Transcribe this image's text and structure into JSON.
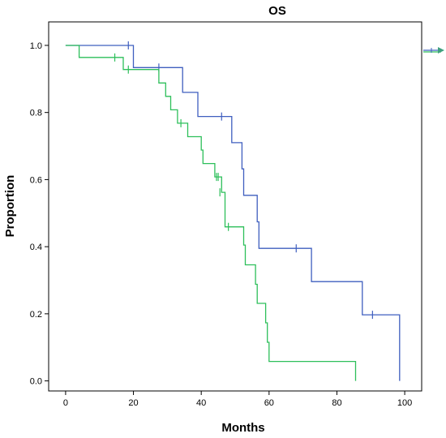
{
  "chart_data": {
    "type": "line",
    "subtype": "kaplan-meier-step",
    "title": "OS",
    "xlabel": "Months",
    "ylabel": "Proportion",
    "xlim": [
      -5,
      105
    ],
    "ylim": [
      -0.03,
      1.07
    ],
    "xticks": [
      "0",
      "20",
      "40",
      "60",
      "80",
      "100"
    ],
    "yticks": [
      "0.0",
      "0.2",
      "0.4",
      "0.6",
      "0.8",
      "1.0"
    ],
    "grid": false,
    "legend": "partially visible at right edge",
    "series": [
      {
        "color": "#3f5fbf",
        "steps": [
          [
            0,
            1.0
          ],
          [
            20,
            1.0
          ],
          [
            20,
            0.934
          ],
          [
            34.5,
            0.934
          ],
          [
            34.5,
            0.86
          ],
          [
            39,
            0.86
          ],
          [
            39,
            0.788
          ],
          [
            49,
            0.788
          ],
          [
            49,
            0.71
          ],
          [
            52,
            0.71
          ],
          [
            52,
            0.632
          ],
          [
            52.5,
            0.632
          ],
          [
            52.5,
            0.553
          ],
          [
            56.5,
            0.553
          ],
          [
            56.5,
            0.474
          ],
          [
            57,
            0.474
          ],
          [
            57,
            0.395
          ],
          [
            72.5,
            0.395
          ],
          [
            72.5,
            0.296
          ],
          [
            87.5,
            0.296
          ],
          [
            87.5,
            0.197
          ],
          [
            98.5,
            0.197
          ],
          [
            98.5,
            0.0
          ]
        ],
        "censored": [
          [
            18.5,
            1.0
          ],
          [
            27.5,
            0.934
          ],
          [
            46,
            0.788
          ],
          [
            68,
            0.395
          ],
          [
            90.5,
            0.197
          ]
        ]
      },
      {
        "color": "#2dbf5a",
        "steps": [
          [
            0,
            1.0
          ],
          [
            4,
            1.0
          ],
          [
            4,
            0.964
          ],
          [
            17,
            0.964
          ],
          [
            17,
            0.928
          ],
          [
            27.5,
            0.928
          ],
          [
            27.5,
            0.888
          ],
          [
            29.5,
            0.888
          ],
          [
            29.5,
            0.848
          ],
          [
            31,
            0.848
          ],
          [
            31,
            0.808
          ],
          [
            33,
            0.808
          ],
          [
            33,
            0.768
          ],
          [
            36,
            0.768
          ],
          [
            36,
            0.728
          ],
          [
            40,
            0.728
          ],
          [
            40,
            0.688
          ],
          [
            40.5,
            0.688
          ],
          [
            40.5,
            0.648
          ],
          [
            44,
            0.648
          ],
          [
            44,
            0.608
          ],
          [
            46,
            0.608
          ],
          [
            46,
            0.562
          ],
          [
            47,
            0.562
          ],
          [
            47,
            0.459
          ],
          [
            52.5,
            0.459
          ],
          [
            52.5,
            0.405
          ],
          [
            53,
            0.405
          ],
          [
            53,
            0.346
          ],
          [
            56,
            0.346
          ],
          [
            56,
            0.288
          ],
          [
            56.5,
            0.288
          ],
          [
            56.5,
            0.231
          ],
          [
            59,
            0.231
          ],
          [
            59,
            0.173
          ],
          [
            59.5,
            0.173
          ],
          [
            59.5,
            0.115
          ],
          [
            60,
            0.115
          ],
          [
            60,
            0.058
          ],
          [
            85.5,
            0.058
          ],
          [
            85.5,
            0.0
          ]
        ],
        "censored": [
          [
            14.5,
            0.964
          ],
          [
            18.5,
            0.928
          ],
          [
            34,
            0.768
          ],
          [
            44.5,
            0.608
          ],
          [
            45,
            0.608
          ],
          [
            45.5,
            0.562
          ],
          [
            48,
            0.459
          ]
        ]
      }
    ]
  },
  "colors": {
    "blue_series": "#3f5fbf",
    "green_series": "#2dbf5a",
    "frame": "#000000",
    "legend_marker": "#3fa07f"
  }
}
